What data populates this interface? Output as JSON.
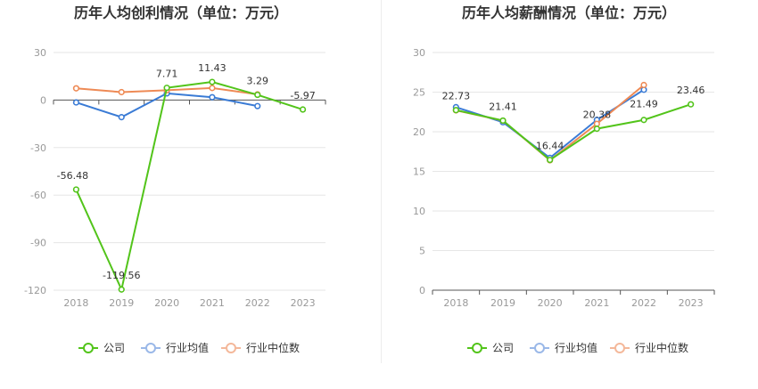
{
  "charts": [
    {
      "title": "历年人均创利情况（单位：万元）",
      "chart_data": {
        "type": "line",
        "title": "历年人均创利情况（单位：万元）",
        "xlabel": "",
        "ylabel": "",
        "categories": [
          "2018",
          "2019",
          "2020",
          "2021",
          "2022",
          "2023"
        ],
        "ylim": [
          -120,
          30
        ],
        "yticks": [
          30,
          0,
          -30,
          -60,
          -90,
          -120
        ],
        "grid": true,
        "legend_position": "bottom",
        "series": [
          {
            "name": "公司",
            "color": "#52c41a",
            "values": [
              -56.48,
              -119.56,
              7.71,
              11.43,
              3.29,
              -5.97
            ],
            "labels": [
              "-56.48",
              "-119.56",
              "7.71",
              "11.43",
              "3.29",
              "-5.97"
            ]
          },
          {
            "name": "行业均值",
            "color": "#3a7bd5",
            "values": [
              -1.5,
              -10.8,
              4.2,
              1.8,
              -3.8,
              null
            ]
          },
          {
            "name": "行业中位数",
            "color": "#ee8a55",
            "values": [
              7.4,
              5.0,
              6.2,
              7.6,
              3.6,
              null
            ]
          }
        ]
      }
    },
    {
      "title": "历年人均薪酬情况（单位：万元）",
      "chart_data": {
        "type": "line",
        "title": "历年人均薪酬情况（单位：万元）",
        "xlabel": "",
        "ylabel": "",
        "categories": [
          "2018",
          "2019",
          "2020",
          "2021",
          "2022",
          "2023"
        ],
        "ylim": [
          0,
          30
        ],
        "yticks": [
          30,
          25,
          20,
          15,
          10,
          5,
          0
        ],
        "grid": true,
        "legend_position": "bottom",
        "series": [
          {
            "name": "公司",
            "color": "#52c41a",
            "values": [
              22.73,
              21.41,
              16.44,
              20.38,
              21.49,
              23.46
            ],
            "labels": [
              "22.73",
              "21.41",
              "16.44",
              "20.38",
              "21.49",
              "23.46"
            ]
          },
          {
            "name": "行业均值",
            "color": "#3a7bd5",
            "values": [
              23.1,
              21.2,
              16.7,
              21.5,
              25.3,
              null
            ]
          },
          {
            "name": "行业中位数",
            "color": "#ee8a55",
            "values": [
              22.7,
              21.4,
              16.4,
              21.0,
              25.9,
              null
            ]
          }
        ]
      }
    }
  ],
  "legend": [
    {
      "name": "公司",
      "color": "#52c41a"
    },
    {
      "name": "行业均值",
      "color": "#9ab8e8"
    },
    {
      "name": "行业中位数",
      "color": "#f4b89a"
    }
  ]
}
